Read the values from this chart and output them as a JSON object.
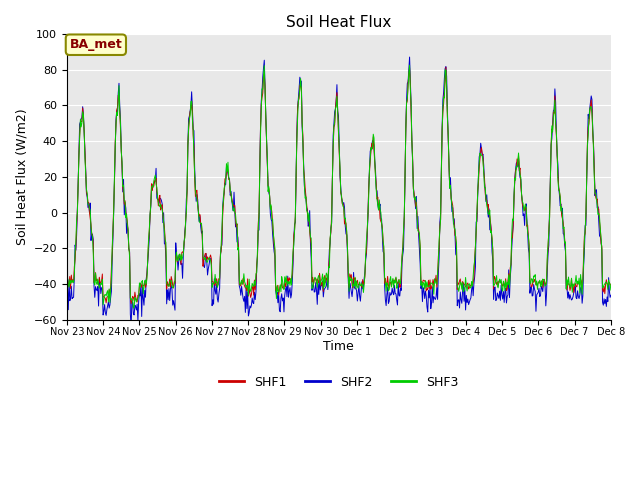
{
  "title": "Soil Heat Flux",
  "xlabel": "Time",
  "ylabel": "Soil Heat Flux (W/m2)",
  "ylim": [
    -60,
    100
  ],
  "yticks": [
    -60,
    -40,
    -20,
    0,
    20,
    40,
    60,
    80,
    100
  ],
  "line_colors": [
    "#cc0000",
    "#0000cc",
    "#00cc00"
  ],
  "line_labels": [
    "SHF1",
    "SHF2",
    "SHF3"
  ],
  "annotation_text": "BA_met",
  "annotation_bg": "#ffffcc",
  "annotation_border": "#888800",
  "annotation_text_color": "#880000",
  "plot_bg_color": "#e8e8e8",
  "tick_labels": [
    "Nov 23",
    "Nov 24",
    "Nov 25",
    "Nov 26",
    "Nov 27",
    "Nov 28",
    "Nov 29",
    "Nov 30",
    "Dec 1",
    "Dec 2",
    "Dec 3",
    "Dec 4",
    "Dec 5",
    "Dec 6",
    "Dec 7",
    "Dec 8"
  ],
  "n_days": 15,
  "pts_per_day": 48
}
